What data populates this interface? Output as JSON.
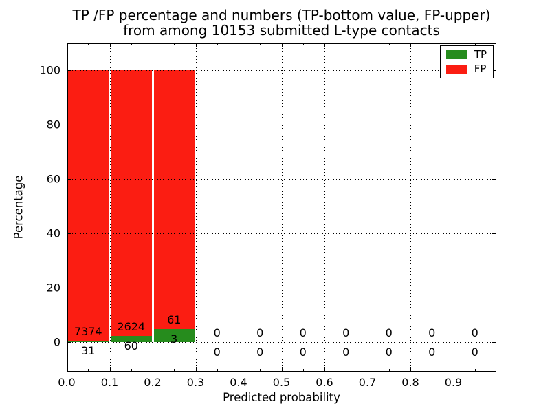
{
  "title": {
    "line1": "TP /FP percentage and numbers (TP-bottom value, FP-upper)",
    "line2": "from among 10153 submitted L-type contacts"
  },
  "chart_data": {
    "type": "bar",
    "stacked": true,
    "normalized": "percent-of-bin-total",
    "title": "TP /FP percentage and numbers (TP-bottom value, FP-upper)\nfrom among 10153 submitted L-type contacts",
    "xlabel": "Predicted probability",
    "ylabel": "Percentage",
    "total_submitted": 10153,
    "xlim": [
      0.0,
      1.0
    ],
    "ylim": [
      -11,
      110
    ],
    "bin_width": 0.1,
    "x_minor_tick_step": 0.05,
    "grid": true,
    "grid_style": "dotted",
    "xticks": {
      "values": [
        0.0,
        0.1,
        0.2,
        0.3,
        0.4,
        0.5,
        0.6,
        0.7,
        0.8,
        0.9
      ],
      "labels": [
        "0.0",
        "0.1",
        "0.2",
        "0.3",
        "0.4",
        "0.5",
        "0.6",
        "0.7",
        "0.8",
        "0.9"
      ]
    },
    "yticks": {
      "values": [
        0,
        20,
        40,
        60,
        80,
        100
      ],
      "labels": [
        "0",
        "20",
        "40",
        "60",
        "80",
        "100"
      ]
    },
    "legend": {
      "position": "upper-right",
      "entries": [
        {
          "label": "TP",
          "color": "#268c1d"
        },
        {
          "label": "FP",
          "color": "#fb1d12"
        }
      ]
    },
    "bins": [
      {
        "x_range": [
          0.0,
          0.1
        ],
        "tp_count": 31,
        "fp_count": 7374
      },
      {
        "x_range": [
          0.1,
          0.2
        ],
        "tp_count": 60,
        "fp_count": 2624
      },
      {
        "x_range": [
          0.2,
          0.3
        ],
        "tp_count": 3,
        "fp_count": 61
      },
      {
        "x_range": [
          0.3,
          0.4
        ],
        "tp_count": 0,
        "fp_count": 0
      },
      {
        "x_range": [
          0.4,
          0.5
        ],
        "tp_count": 0,
        "fp_count": 0
      },
      {
        "x_range": [
          0.5,
          0.6
        ],
        "tp_count": 0,
        "fp_count": 0
      },
      {
        "x_range": [
          0.6,
          0.7
        ],
        "tp_count": 0,
        "fp_count": 0
      },
      {
        "x_range": [
          0.7,
          0.8
        ],
        "tp_count": 0,
        "fp_count": 0
      },
      {
        "x_range": [
          0.8,
          0.9
        ],
        "tp_count": 0,
        "fp_count": 0
      },
      {
        "x_range": [
          0.9,
          1.0
        ],
        "tp_count": 0,
        "fp_count": 0
      }
    ]
  },
  "colors": {
    "tp_green": "#268c1d",
    "fp_red": "#fb1d12",
    "grid": "#000000",
    "text": "#000000",
    "background": "#ffffff"
  }
}
